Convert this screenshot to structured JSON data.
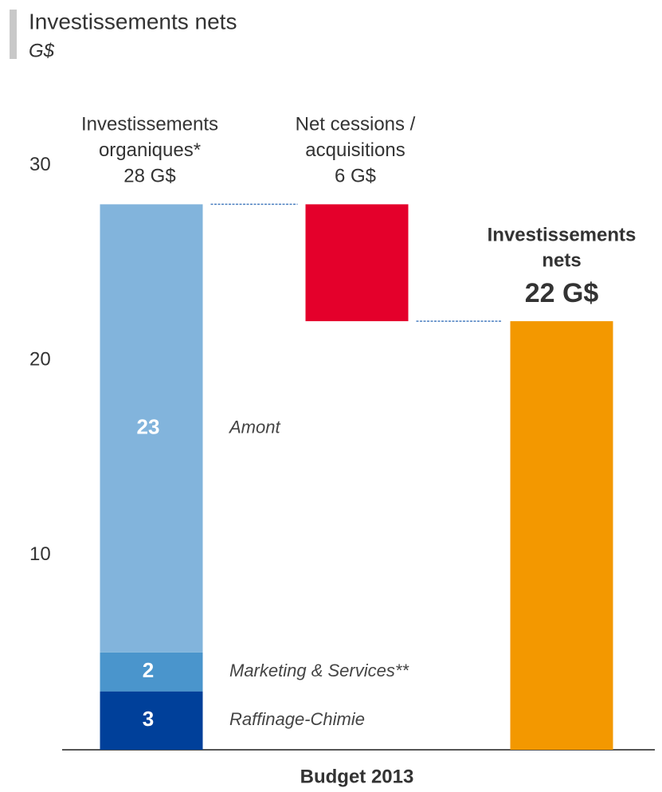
{
  "chart_data": {
    "type": "waterfall",
    "title": "Investissements nets",
    "subtitle": "G$",
    "xlabel": "Budget 2013",
    "ylim": [
      0,
      30
    ],
    "yticks": [
      10,
      20,
      30
    ],
    "categories": [
      [
        "Investissements",
        "organiques*",
        "28 G$"
      ],
      [
        "Net cessions /",
        "acquisitions",
        "6 G$"
      ],
      [
        "Investissements",
        "nets",
        "22 G$"
      ]
    ],
    "series": [
      {
        "name": "Raffinage-Chimie",
        "color": "#00409a",
        "values": [
          3,
          null,
          null
        ]
      },
      {
        "name": "Marketing & Services**",
        "color": "#4a95cc",
        "values": [
          2,
          null,
          null
        ]
      },
      {
        "name": "Amont",
        "color": "#82b4dc",
        "values": [
          23,
          null,
          null
        ]
      },
      {
        "color": "#e4002b",
        "values": [
          null,
          -6,
          null
        ]
      },
      {
        "color": "#f39800",
        "role": "total",
        "values": [
          null,
          null,
          22
        ]
      }
    ]
  }
}
